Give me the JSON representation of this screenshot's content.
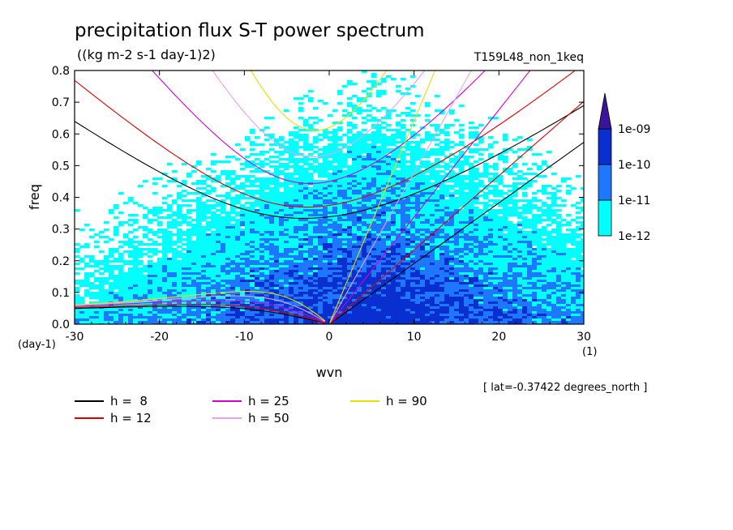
{
  "chart_data": {
    "type": "heatmap",
    "title": "precipitation flux S-T power spectrum",
    "subtitle": "((kg m-2 s-1 day-1)2)",
    "run_label": "T159L48_non_1keq",
    "xlabel": "wvn",
    "ylabel": "freq",
    "x_unit_label": "(1)",
    "y_unit_label": "(day-1)",
    "xlim": [
      -30,
      30
    ],
    "ylim": [
      0,
      0.8
    ],
    "xticks": [
      -30,
      -20,
      -10,
      0,
      10,
      20,
      30
    ],
    "xtick_labels": [
      "-30",
      "-20",
      "-10",
      "0",
      "10",
      "20",
      "30"
    ],
    "yticks": [
      0,
      0.1,
      0.2,
      0.3,
      0.4,
      0.5,
      0.6,
      0.7,
      0.8
    ],
    "ytick_labels": [
      "0.0",
      "0.1",
      "0.2",
      "0.3",
      "0.4",
      "0.5",
      "0.6",
      "0.7",
      "0.8"
    ],
    "annotation": "[ lat=-0.37422 degrees_north ]",
    "colorbar": {
      "levels": [
        "1e-12",
        "1e-11",
        "1e-10",
        "1e-09"
      ],
      "colors": [
        "#00ffff",
        "#1e78ff",
        "#0a2fd0",
        "#3a149a"
      ]
    },
    "dispersion_curves": [
      {
        "label": "h =  8",
        "h": 8,
        "color": "#000000"
      },
      {
        "label": "h = 12",
        "h": 12,
        "color": "#e00000"
      },
      {
        "label": "h = 25",
        "h": 25,
        "color": "#d000d0"
      },
      {
        "label": "h = 50",
        "h": 50,
        "color": "#e8a0e8"
      },
      {
        "label": "h = 90",
        "h": 90,
        "color": "#e8e000"
      }
    ]
  }
}
